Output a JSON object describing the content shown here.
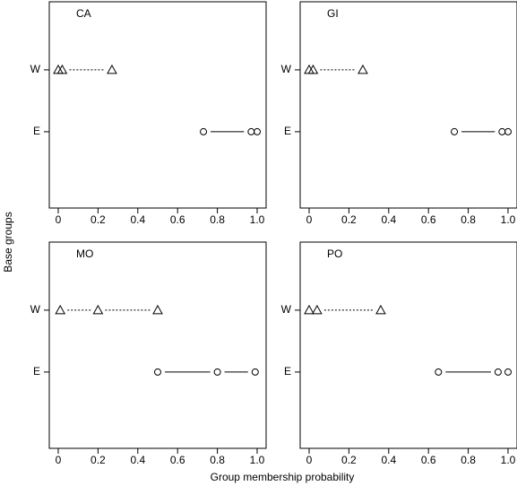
{
  "ylabel": "Base groups",
  "xlabel": "Group membership probability",
  "chart_data": [
    {
      "type": "scatter",
      "title": "CA",
      "categories": [
        "W",
        "E"
      ],
      "values": [
        [
          0,
          0.02,
          0.27
        ],
        [
          0.73,
          0.97,
          1.0
        ]
      ],
      "markers": [
        "triangle",
        "circle"
      ],
      "line_styles": [
        "dashed",
        "solid"
      ],
      "xlim": [
        -0.045,
        1.045
      ],
      "xticks": [
        0,
        0.2,
        0.4,
        0.6,
        0.8,
        {
          "value": 1,
          "label": "1.0"
        }
      ]
    },
    {
      "type": "scatter",
      "title": "GI",
      "categories": [
        "W",
        "E"
      ],
      "values": [
        [
          0,
          0.02,
          0.27
        ],
        [
          0.73,
          0.97,
          1.0
        ]
      ],
      "markers": [
        "triangle",
        "circle"
      ],
      "line_styles": [
        "dashed",
        "solid"
      ],
      "xlim": [
        -0.045,
        1.045
      ],
      "xticks": [
        0,
        0.2,
        0.4,
        0.6,
        0.8,
        {
          "value": 1,
          "label": "1.0"
        }
      ]
    },
    {
      "type": "scatter",
      "title": "MO",
      "categories": [
        "W",
        "E"
      ],
      "values": [
        [
          0.01,
          0.2,
          0.5
        ],
        [
          0.5,
          0.8,
          0.99
        ]
      ],
      "markers": [
        "triangle",
        "circle"
      ],
      "line_styles": [
        "dashed",
        "solid"
      ],
      "xlim": [
        -0.045,
        1.045
      ],
      "xticks": [
        0,
        0.2,
        0.4,
        0.6,
        0.8,
        {
          "value": 1,
          "label": "1.0"
        }
      ]
    },
    {
      "type": "scatter",
      "title": "PO",
      "categories": [
        "W",
        "E"
      ],
      "values": [
        [
          0,
          0.04,
          0.36
        ],
        [
          0.65,
          0.95,
          1.0
        ]
      ],
      "markers": [
        "triangle",
        "circle"
      ],
      "line_styles": [
        "dashed",
        "solid"
      ],
      "xlim": [
        -0.045,
        1.045
      ],
      "xticks": [
        0,
        0.2,
        0.4,
        0.6,
        0.8,
        {
          "value": 1,
          "label": "1.0"
        }
      ]
    }
  ]
}
